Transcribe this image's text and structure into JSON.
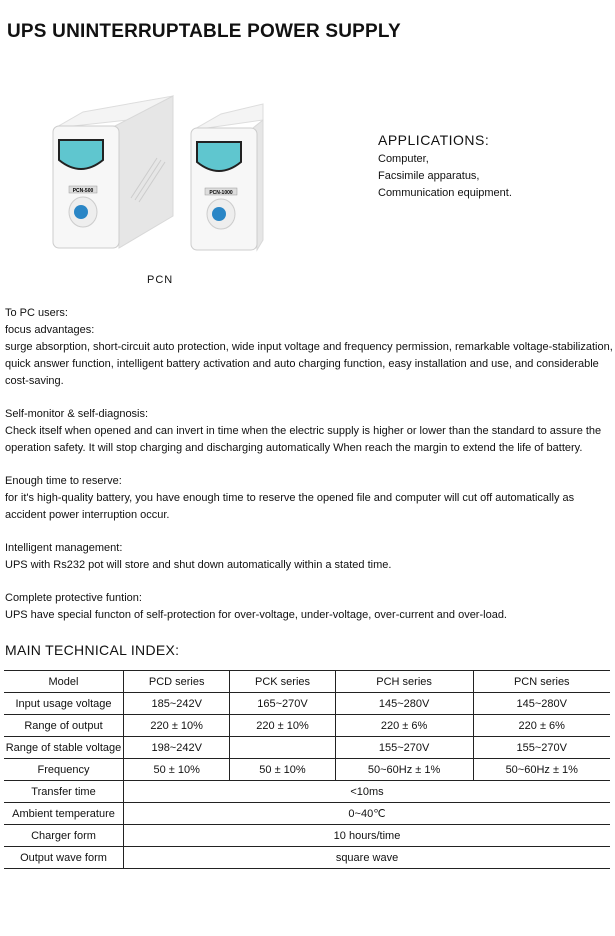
{
  "title": "UPS UNINTERRUPTABLE POWER SUPPLY",
  "product_image": {
    "caption": "PCN",
    "units": [
      "PCN-500",
      "PCN-1000"
    ],
    "screen_color": "#5fc6cf",
    "button_color": "#2a86c6"
  },
  "applications": {
    "heading": "APPLICATIONS:",
    "items": [
      "Computer,",
      "Facsimile apparatus,",
      "Communication equipment."
    ]
  },
  "sections": [
    {
      "heading": "To PC users:",
      "lines": [
        "focus advantages:",
        "surge absorption, short-circuit auto protection, wide input voltage and frequency permission, remarkable voltage-stabilization, quick answer function, intelligent battery activation and auto charging function, easy installation and use, and considerable cost-saving."
      ]
    },
    {
      "heading": "Self-monitor & self-diagnosis:",
      "lines": [
        "Check itself when opened and can invert in time when the electric supply is higher or lower than the standard to assure the operation safety. It will stop charging and discharging automatically When reach the margin to extend the life of battery."
      ]
    },
    {
      "heading": "Enough time to reserve:",
      "lines": [
        "for it's high-quality battery, you have enough time to reserve the opened file and computer will cut off automatically as accident power interruption occur."
      ]
    },
    {
      "heading": "Intelligent management:",
      "lines": [
        "UPS with Rs232 pot will store and shut down automatically within a stated time."
      ]
    },
    {
      "heading": "Complete protective funtion:",
      "lines": [
        "UPS have special functon of self-protection for over-voltage, under-voltage, over-current and over-load."
      ]
    }
  ],
  "table": {
    "title": "MAIN TECHNICAL INDEX:",
    "header": [
      "Model",
      "PCD series",
      "PCK series",
      "PCH series",
      "PCN series"
    ],
    "rows": [
      [
        "Input usage voltage",
        "185~242V",
        "165~270V",
        "145~280V",
        "145~280V"
      ],
      [
        "Range of output",
        "220 ± 10%",
        "220 ± 10%",
        "220 ± 6%",
        "220 ± 6%"
      ],
      [
        "Range of stable voltage",
        "198~242V",
        "",
        "155~270V",
        "155~270V"
      ],
      [
        "Frequency",
        "50 ± 10%",
        "50 ± 10%",
        "50~60Hz ± 1%",
        "50~60Hz ± 1%"
      ]
    ],
    "merged_rows": [
      [
        "Transfer time",
        "<10ms"
      ],
      [
        "Ambient temperature",
        "0~40℃"
      ],
      [
        "Charger form",
        "10 hours/time"
      ],
      [
        "Output wave form",
        "square wave"
      ]
    ]
  }
}
